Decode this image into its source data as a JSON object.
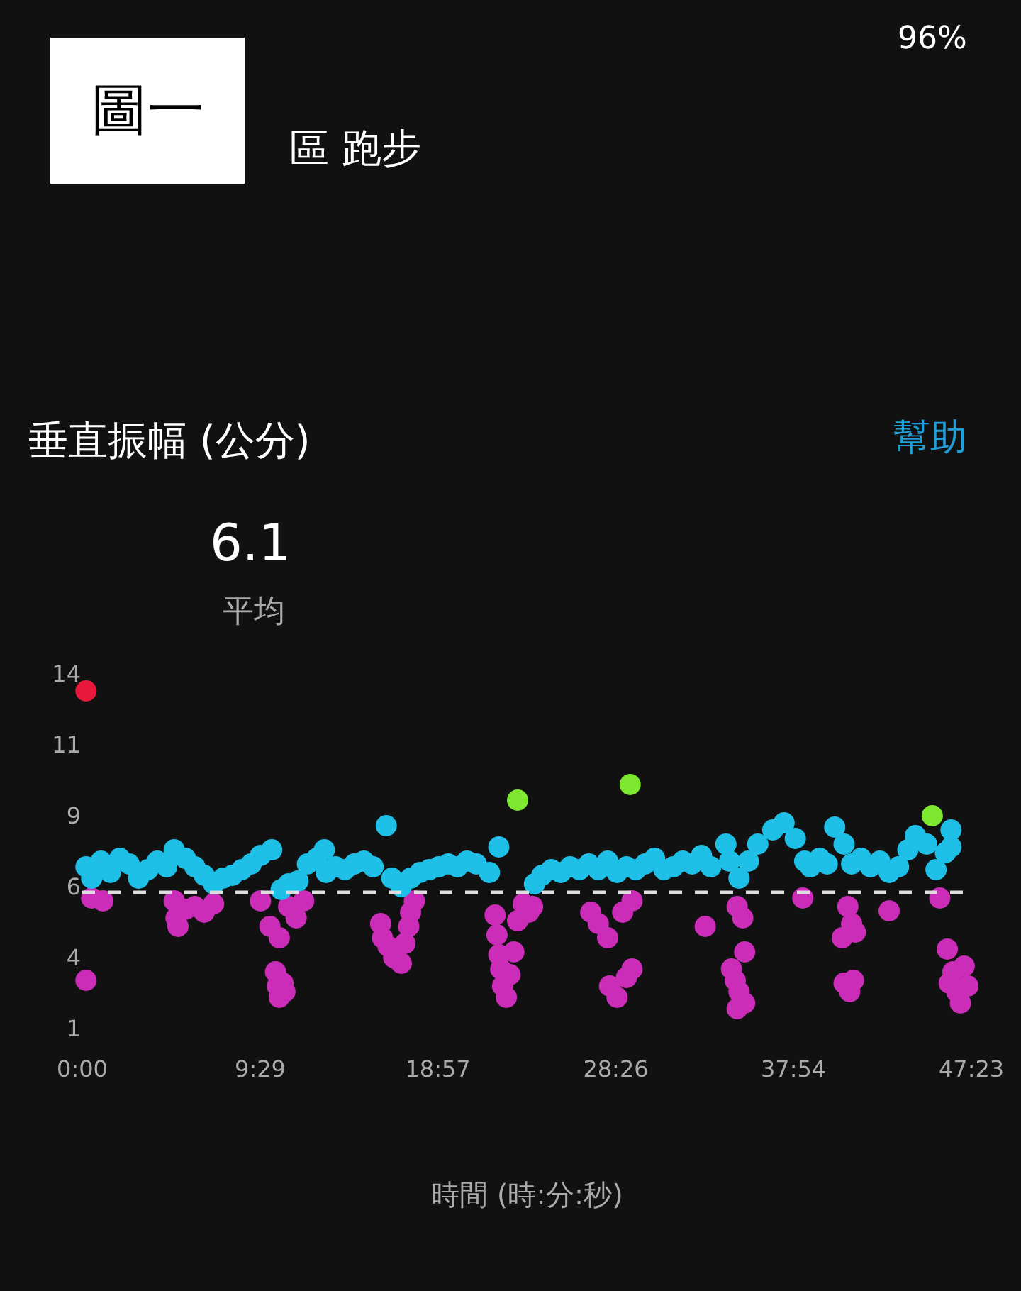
{
  "chart_data": {
    "type": "scatter",
    "title": "垂直振幅 (公分)",
    "xlabel": "時間 (時:分:秒)",
    "annotations": [
      "圖一",
      "區 跑步",
      "96%",
      "幫助",
      "6.1",
      "平均"
    ],
    "xlim": [
      0,
      47.383
    ],
    "ylim": [
      1.3,
      13.8
    ],
    "xticks": [
      {
        "value": 0,
        "label": "0:00"
      },
      {
        "value": 9.483,
        "label": "9:29"
      },
      {
        "value": 18.95,
        "label": "18:57"
      },
      {
        "value": 28.433,
        "label": "28:26"
      },
      {
        "value": 37.9,
        "label": "37:54"
      },
      {
        "value": 47.383,
        "label": "47:23"
      }
    ],
    "yticks": [
      {
        "value": 1.3,
        "label": "1"
      },
      {
        "value": 3.8,
        "label": "4"
      },
      {
        "value": 6.3,
        "label": "6"
      },
      {
        "value": 8.8,
        "label": "9"
      },
      {
        "value": 11.3,
        "label": "11"
      },
      {
        "value": 13.8,
        "label": "14"
      }
    ],
    "grid": false,
    "marker": "circle",
    "ref_lines": [
      {
        "axis": "y",
        "value": 6.1,
        "color": "#dddddd",
        "line_style": "dashed"
      }
    ],
    "series": [
      {
        "color": "#e8173c",
        "x": [
          0.2
        ],
        "values": [
          13.2
        ]
      },
      {
        "color": "#7ee830",
        "x": [
          23.2,
          29.2,
          45.3
        ],
        "values": [
          9.35,
          9.9,
          8.8
        ]
      },
      {
        "color": "#cc2db8",
        "x": [
          0.2,
          0.5,
          1.1,
          4.9,
          5.0,
          5.1,
          5.5,
          6.0,
          6.5,
          7.0,
          9.5,
          10.0,
          10.5,
          11.0,
          11.4,
          11.8,
          10.3,
          10.4,
          10.5,
          10.7,
          10.8,
          15.9,
          16.0,
          16.3,
          16.6,
          17.0,
          17.2,
          17.4,
          17.5,
          17.7,
          22.0,
          22.1,
          22.2,
          22.3,
          22.4,
          22.6,
          22.8,
          23.0,
          23.2,
          23.5,
          23.8,
          24.0,
          27.1,
          27.5,
          28.0,
          28.8,
          29.3,
          28.1,
          28.5,
          29.0,
          29.3,
          33.2,
          34.9,
          35.2,
          35.3,
          34.6,
          34.8,
          35.0,
          35.3,
          34.9,
          38.4,
          40.8,
          41.0,
          40.5,
          41.2,
          40.6,
          40.9,
          41.1,
          43.0,
          45.7,
          46.1,
          46.4,
          46.6,
          46.8,
          47.0,
          46.2,
          47.2
        ],
        "values": [
          3.0,
          5.9,
          5.8,
          5.8,
          5.2,
          4.9,
          5.5,
          5.6,
          5.4,
          5.7,
          5.8,
          4.9,
          4.5,
          5.6,
          5.2,
          5.8,
          3.3,
          2.8,
          2.4,
          2.9,
          2.6,
          5.0,
          4.5,
          4.2,
          3.8,
          3.6,
          4.3,
          4.9,
          5.4,
          5.8,
          5.3,
          4.6,
          3.9,
          3.4,
          2.8,
          2.4,
          3.2,
          4.0,
          5.1,
          5.7,
          5.4,
          5.6,
          5.4,
          5.0,
          4.5,
          5.4,
          5.8,
          2.8,
          2.4,
          3.1,
          3.4,
          4.9,
          5.6,
          5.2,
          4.0,
          3.4,
          3.0,
          2.6,
          2.2,
          2.0,
          5.9,
          5.6,
          5.0,
          4.5,
          4.7,
          2.9,
          2.6,
          3.0,
          5.45,
          5.9,
          4.1,
          3.3,
          2.6,
          2.2,
          3.5,
          2.9,
          2.8
        ]
      },
      {
        "color": "#1ec0e8",
        "x": [
          0.2,
          0.5,
          1.0,
          1.5,
          2.0,
          2.5,
          3.0,
          3.5,
          4.0,
          4.5,
          4.9,
          5.5,
          6.0,
          6.5,
          7.0,
          7.5,
          8.0,
          8.5,
          9.0,
          9.5,
          10.1,
          10.6,
          11.0,
          11.5,
          12.0,
          12.9,
          12.5,
          13.0,
          13.5,
          14.0,
          14.5,
          15.0,
          15.5,
          16.2,
          16.5,
          17.0,
          17.5,
          18.0,
          18.5,
          19.0,
          19.5,
          20.0,
          20.5,
          21.0,
          21.7,
          22.2,
          24.1,
          24.5,
          25.0,
          25.5,
          26.0,
          26.5,
          27.0,
          27.5,
          28.0,
          28.5,
          29.0,
          29.5,
          30.0,
          30.5,
          31.0,
          31.5,
          32.0,
          32.5,
          33.0,
          33.5,
          34.3,
          34.5,
          35.0,
          35.5,
          36.0,
          36.8,
          37.4,
          38.0,
          38.5,
          38.8,
          39.3,
          39.7,
          40.1,
          40.6,
          41.0,
          41.5,
          42.0,
          42.5,
          43.0,
          43.5,
          44.0,
          44.4,
          45.0,
          45.5,
          46.0,
          46.3,
          46.3
        ],
        "values": [
          7.0,
          6.6,
          7.2,
          6.8,
          7.3,
          7.1,
          6.6,
          6.9,
          7.2,
          7.0,
          7.6,
          7.3,
          7.0,
          6.7,
          6.4,
          6.6,
          6.7,
          6.9,
          7.1,
          7.4,
          7.6,
          6.2,
          6.4,
          6.5,
          7.1,
          7.6,
          7.3,
          6.8,
          7.0,
          6.9,
          7.1,
          7.2,
          7.0,
          8.45,
          6.6,
          6.3,
          6.6,
          6.8,
          6.9,
          7.0,
          7.1,
          7.0,
          7.2,
          7.1,
          6.8,
          7.7,
          6.4,
          6.7,
          6.9,
          6.8,
          7.0,
          6.9,
          7.1,
          6.9,
          7.2,
          6.8,
          7.0,
          6.9,
          7.1,
          7.3,
          6.9,
          7.0,
          7.2,
          7.1,
          7.4,
          7.0,
          7.8,
          7.2,
          6.6,
          7.2,
          7.8,
          8.3,
          8.55,
          8.0,
          7.2,
          7.0,
          7.3,
          7.1,
          8.4,
          7.8,
          7.1,
          7.3,
          7.0,
          7.2,
          6.8,
          7.0,
          7.6,
          8.1,
          7.8,
          6.9,
          7.5,
          8.3,
          7.7
        ]
      }
    ]
  }
}
